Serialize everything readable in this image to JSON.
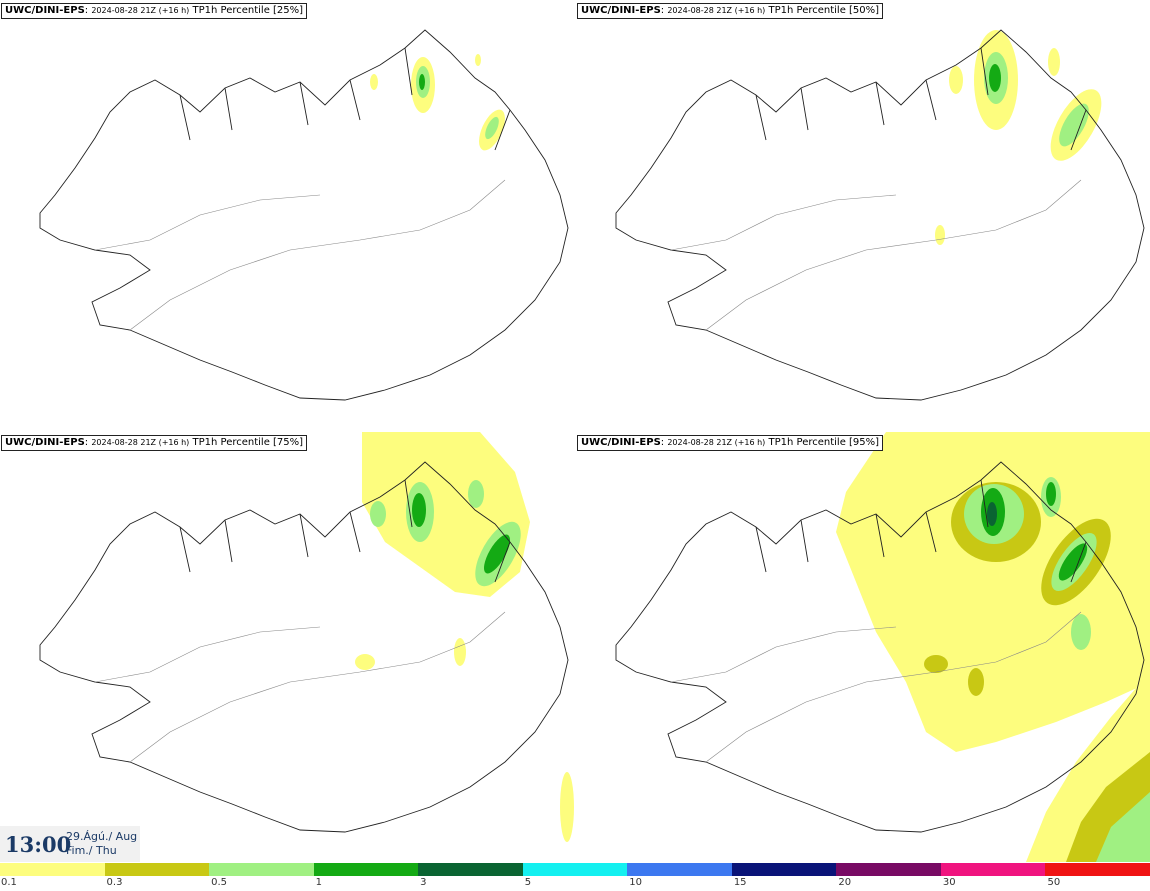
{
  "panels": [
    {
      "source": "UWC/DINI-EPS",
      "run": "2024-08-28 21Z (+16 h)",
      "field": "TP1h Percentile [25%]"
    },
    {
      "source": "UWC/DINI-EPS",
      "run": "2024-08-28 21Z (+16 h)",
      "field": "TP1h Percentile [50%]"
    },
    {
      "source": "UWC/DINI-EPS",
      "run": "2024-08-28 21Z (+16 h)",
      "field": "TP1h Percentile [75%]"
    },
    {
      "source": "UWC/DINI-EPS",
      "run": "2024-08-28 21Z (+16 h)",
      "field": "TP1h Percentile [95%]"
    }
  ],
  "valid_time": {
    "time": "13:00",
    "date": "29.Ágú./ Aug",
    "weekday": "Fim./ Thu"
  },
  "legend": {
    "colors": [
      "#fdfd7e",
      "#c8c814",
      "#a0f082",
      "#14aa14",
      "#0a6432",
      "#14f0f0",
      "#3c78f0",
      "#0a1478",
      "#780a64",
      "#f0147f",
      "#f01414"
    ],
    "ticks": [
      "0.1",
      "0.3",
      "0.5",
      "1",
      "3",
      "5",
      "10",
      "15",
      "20",
      "30",
      "50"
    ]
  }
}
